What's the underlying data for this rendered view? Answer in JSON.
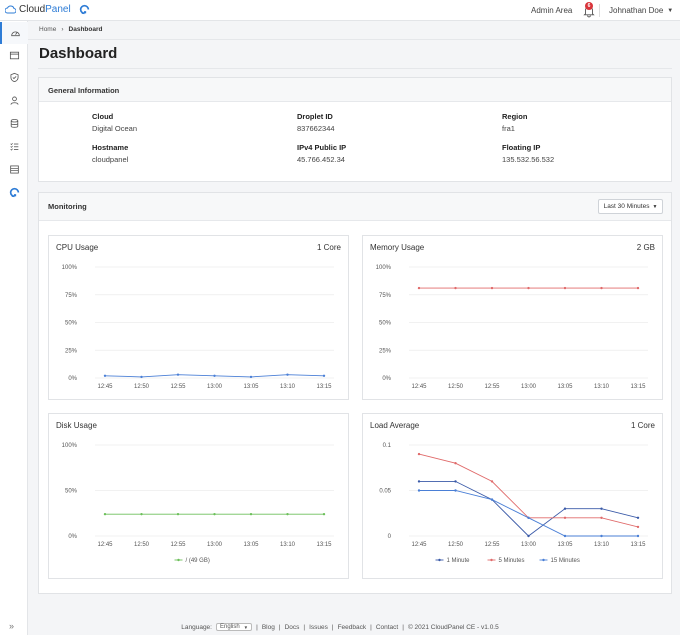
{
  "brand": {
    "name_part1": "Cloud",
    "name_part2": "Panel"
  },
  "topbar": {
    "admin_area": "Admin Area",
    "notifications_count": "6",
    "user_name": "Johnathan Doe"
  },
  "breadcrumb": {
    "home": "Home",
    "separator": "›",
    "current": "Dashboard"
  },
  "page": {
    "title": "Dashboard"
  },
  "general_info": {
    "title": "General Information",
    "fields": {
      "cloud": {
        "label": "Cloud",
        "value": "Digital Ocean"
      },
      "droplet_id": {
        "label": "Droplet ID",
        "value": "837662344"
      },
      "region": {
        "label": "Region",
        "value": "fra1"
      },
      "hostname": {
        "label": "Hostname",
        "value": "cloudpanel"
      },
      "ipv4": {
        "label": "IPv4 Public IP",
        "value": "45.766.452.34"
      },
      "floating_ip": {
        "label": "Floating IP",
        "value": "135.532.56.532"
      }
    }
  },
  "monitoring": {
    "title": "Monitoring",
    "range_label": "Last 30 Minutes"
  },
  "charts": {
    "cpu": {
      "title": "CPU Usage",
      "right": "1 Core"
    },
    "memory": {
      "title": "Memory Usage",
      "right": "2 GB"
    },
    "disk": {
      "title": "Disk Usage",
      "right": ""
    },
    "load": {
      "title": "Load Average",
      "right": "1 Core"
    }
  },
  "footer": {
    "language_label": "Language:",
    "language_value": "English",
    "links": [
      "Blog",
      "Docs",
      "Issues",
      "Feedback",
      "Contact"
    ],
    "copyright": "© 2021 CloudPanel CE - v1.0.5"
  },
  "colors": {
    "accent": "#2e7cd6",
    "cpu": "#4a7fd6",
    "memory": "#e06a6a",
    "disk": "#6cbf5a",
    "badge": "#d9343a"
  },
  "chart_data": [
    {
      "id": "cpu",
      "type": "line",
      "title": "CPU Usage",
      "x": [
        "12:45",
        "12:50",
        "12:55",
        "13:00",
        "13:05",
        "13:10",
        "13:15"
      ],
      "y_ticks": [
        "100%",
        "75%",
        "50%",
        "25%",
        "0%"
      ],
      "ylim": [
        0,
        100
      ],
      "series": [
        {
          "color": "#4a7fd6",
          "values": [
            2,
            1,
            3,
            2,
            1,
            3,
            2
          ]
        }
      ]
    },
    {
      "id": "memory",
      "type": "line",
      "title": "Memory Usage",
      "x": [
        "12:45",
        "12:50",
        "12:55",
        "13:00",
        "13:05",
        "13:10",
        "13:15"
      ],
      "y_ticks": [
        "100%",
        "75%",
        "50%",
        "25%",
        "0%"
      ],
      "ylim": [
        0,
        100
      ],
      "series": [
        {
          "color": "#e06a6a",
          "values": [
            81,
            81,
            81,
            81,
            81,
            81,
            81
          ]
        }
      ]
    },
    {
      "id": "disk",
      "type": "line",
      "title": "Disk Usage",
      "x": [
        "12:45",
        "12:50",
        "12:55",
        "13:00",
        "13:05",
        "13:10",
        "13:15"
      ],
      "y_ticks": [
        "100%",
        "50%",
        "0%"
      ],
      "ylim": [
        0,
        100
      ],
      "legend": [
        "/ (49 GB)"
      ],
      "series": [
        {
          "name": "/ (49 GB)",
          "color": "#6cbf5a",
          "values": [
            24,
            24,
            24,
            24,
            24,
            24,
            24
          ]
        }
      ]
    },
    {
      "id": "load",
      "type": "line",
      "title": "Load Average",
      "x": [
        "12:45",
        "12:50",
        "12:55",
        "13:00",
        "13:05",
        "13:10",
        "13:15"
      ],
      "y_ticks": [
        "0.1",
        "0.05",
        "0"
      ],
      "ylim": [
        0,
        0.1
      ],
      "series": [
        {
          "name": "1 Minute",
          "color": "#3a5aa8",
          "values": [
            0.06,
            0.06,
            0.04,
            0.0,
            0.03,
            0.03,
            0.02
          ]
        },
        {
          "name": "5 Minutes",
          "color": "#e06a6a",
          "values": [
            0.09,
            0.08,
            0.06,
            0.02,
            0.02,
            0.02,
            0.01
          ]
        },
        {
          "name": "15 Minutes",
          "color": "#4a7fd6",
          "values": [
            0.05,
            0.05,
            0.04,
            0.02,
            0.0,
            0.0,
            0.0
          ]
        }
      ]
    }
  ]
}
